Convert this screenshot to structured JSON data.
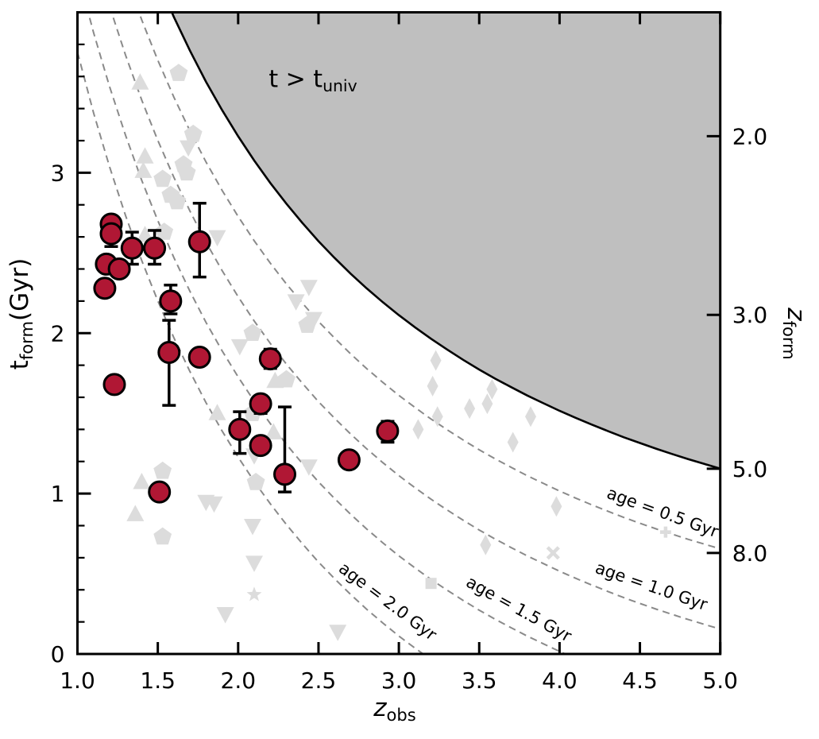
{
  "labels": {
    "ylabel": {
      "pre": "t",
      "sub": "form",
      "post": "(Gyr)"
    },
    "xlabel": {
      "pre": "z",
      "sub": "obs",
      "post": ""
    },
    "right_label": {
      "pre": "z",
      "sub": "form",
      "post": ""
    },
    "exclusion_label": {
      "pre": "t > t",
      "sub": "univ",
      "post": ""
    }
  },
  "colors": {
    "point_fill": "#b01734",
    "point_edge": "#000000",
    "background_marker": "#dcdcdc",
    "exclusion_fill": "#bfbfbf",
    "boundary_line": "#000000",
    "age_curve_line": "#8a8a8a",
    "text": "#000000"
  },
  "chart_data": {
    "type": "scatter",
    "title": "",
    "grid": false,
    "legend": "none",
    "x_axis": {
      "min": 1.0,
      "max": 5.0,
      "ticks": [
        1.0,
        1.5,
        2.0,
        2.5,
        3.0,
        3.5,
        4.0,
        4.5,
        5.0
      ],
      "tick_labels": [
        "1.0",
        "1.5",
        "2.0",
        "2.5",
        "3.0",
        "3.5",
        "4.0",
        "4.5",
        "5.0"
      ]
    },
    "y_axis": {
      "min": 0.0,
      "max": 4.0,
      "ticks": [
        0,
        1,
        2,
        3
      ],
      "tick_labels": [
        "0",
        "1",
        "2",
        "3"
      ],
      "minor_step": 0.2
    },
    "right_axis": {
      "ticks": [
        {
          "label": "2.0",
          "t": 3.228
        },
        {
          "label": "3.0",
          "t": 2.114
        },
        {
          "label": "5.0",
          "t": 1.155
        },
        {
          "label": "8.0",
          "t": 0.63
        }
      ]
    },
    "t_univ_curve": [
      [
        1.0,
        5.752
      ],
      [
        1.1,
        5.375
      ],
      [
        1.2,
        5.036
      ],
      [
        1.3,
        4.731
      ],
      [
        1.4,
        4.453
      ],
      [
        1.5,
        4.201
      ],
      [
        1.6,
        3.971
      ],
      [
        1.7,
        3.761
      ],
      [
        1.8,
        3.567
      ],
      [
        1.9,
        3.39
      ],
      [
        2.0,
        3.227
      ],
      [
        2.1,
        3.076
      ],
      [
        2.2,
        2.936
      ],
      [
        2.3,
        2.807
      ],
      [
        2.4,
        2.687
      ],
      [
        2.5,
        2.573
      ],
      [
        2.6,
        2.469
      ],
      [
        2.7,
        2.371
      ],
      [
        2.8,
        2.279
      ],
      [
        2.9,
        2.193
      ],
      [
        3.0,
        2.112
      ],
      [
        3.1,
        2.037
      ],
      [
        3.2,
        1.965
      ],
      [
        3.3,
        1.898
      ],
      [
        3.4,
        1.834
      ],
      [
        3.5,
        1.773
      ],
      [
        3.6,
        1.716
      ],
      [
        3.7,
        1.663
      ],
      [
        3.8,
        1.611
      ],
      [
        3.9,
        1.563
      ],
      [
        4.0,
        1.516
      ],
      [
        4.1,
        1.472
      ],
      [
        4.2,
        1.43
      ],
      [
        4.3,
        1.39
      ],
      [
        4.4,
        1.351
      ],
      [
        4.5,
        1.315
      ],
      [
        4.6,
        1.28
      ],
      [
        4.7,
        1.247
      ],
      [
        4.8,
        1.215
      ],
      [
        4.9,
        1.185
      ],
      [
        5.0,
        1.155
      ]
    ],
    "age_curves": [
      {
        "age": 0.5,
        "label": "age = 0.5 Gyr",
        "label_z": 4.63,
        "label_t": 0.85,
        "label_rot": 20
      },
      {
        "age": 1.0,
        "label": "age = 1.0 Gyr",
        "label_z": 4.56,
        "label_t": 0.39,
        "label_rot": 19
      },
      {
        "age": 1.5,
        "label": "age = 1.5 Gyr",
        "label_z": 3.73,
        "label_t": 0.25,
        "label_rot": 29
      },
      {
        "age": 2.0,
        "label": "age = 2.0 Gyr",
        "label_z": 2.91,
        "label_t": 0.3,
        "label_rot": 37
      }
    ],
    "series": [
      {
        "name": "primary-sample",
        "marker": "circle",
        "columns": [
          "z_obs",
          "t_form",
          "err_plus",
          "err_minus"
        ],
        "points": [
          [
            1.21,
            2.68,
            0.05,
            0.05
          ],
          [
            1.21,
            2.62,
            0.08,
            0.08
          ],
          [
            1.34,
            2.53,
            0.1,
            0.1
          ],
          [
            1.48,
            2.53,
            0.11,
            0.1
          ],
          [
            1.76,
            2.57,
            0.24,
            0.22
          ],
          [
            1.18,
            2.43,
            0,
            0
          ],
          [
            1.26,
            2.4,
            0,
            0
          ],
          [
            1.17,
            2.28,
            0,
            0
          ],
          [
            1.58,
            2.2,
            0.1,
            0.08
          ],
          [
            1.57,
            1.88,
            0.2,
            0.33
          ],
          [
            1.76,
            1.85,
            0,
            0
          ],
          [
            2.2,
            1.84,
            0.06,
            0.06
          ],
          [
            1.23,
            1.68,
            0,
            0
          ],
          [
            2.14,
            1.56,
            0.05,
            0.06
          ],
          [
            2.01,
            1.4,
            0.11,
            0.15
          ],
          [
            2.14,
            1.3,
            0,
            0
          ],
          [
            2.29,
            1.12,
            0.42,
            0.11
          ],
          [
            2.93,
            1.39,
            0.06,
            0.07
          ],
          [
            2.69,
            1.21,
            0,
            0
          ],
          [
            1.51,
            1.01,
            0,
            0
          ]
        ]
      },
      {
        "name": "literature-triangle-up",
        "marker": "triangle-up",
        "points": [
          [
            1.39,
            3.56
          ],
          [
            1.42,
            3.1
          ],
          [
            1.41,
            3.01
          ],
          [
            1.42,
            2.61
          ],
          [
            2.23,
            1.7
          ],
          [
            1.87,
            1.5
          ],
          [
            2.22,
            1.38
          ],
          [
            1.4,
            1.07
          ],
          [
            1.36,
            0.87
          ]
        ]
      },
      {
        "name": "literature-triangle-down",
        "marker": "triangle-down",
        "points": [
          [
            1.69,
            3.16
          ],
          [
            1.87,
            2.6
          ],
          [
            2.44,
            2.29
          ],
          [
            2.36,
            2.2
          ],
          [
            2.47,
            2.09
          ],
          [
            2.01,
            1.92
          ],
          [
            2.1,
            1.24
          ],
          [
            2.44,
            1.17
          ],
          [
            1.8,
            0.95
          ],
          [
            1.85,
            0.94
          ],
          [
            2.09,
            0.8
          ],
          [
            2.1,
            0.57
          ],
          [
            1.92,
            0.25
          ],
          [
            2.62,
            0.14
          ]
        ]
      },
      {
        "name": "literature-pentagon",
        "marker": "pentagon",
        "points": [
          [
            1.63,
            3.62
          ],
          [
            1.72,
            3.24
          ],
          [
            1.66,
            3.05
          ],
          [
            1.68,
            3.0
          ],
          [
            1.53,
            2.96
          ],
          [
            1.58,
            2.86
          ],
          [
            1.62,
            2.82
          ],
          [
            1.54,
            2.63
          ],
          [
            2.43,
            2.05
          ],
          [
            2.09,
            2.0
          ],
          [
            2.3,
            1.71
          ],
          [
            2.09,
            1.5
          ],
          [
            2.11,
            1.07
          ],
          [
            1.53,
            1.14
          ],
          [
            1.53,
            0.73
          ]
        ]
      },
      {
        "name": "literature-diamond",
        "marker": "thin-diamond",
        "points": [
          [
            3.23,
            1.83
          ],
          [
            3.21,
            1.67
          ],
          [
            3.58,
            1.65
          ],
          [
            3.55,
            1.56
          ],
          [
            3.44,
            1.53
          ],
          [
            3.24,
            1.48
          ],
          [
            3.12,
            1.4
          ],
          [
            3.82,
            1.48
          ],
          [
            3.71,
            1.32
          ],
          [
            3.98,
            0.92
          ],
          [
            3.54,
            0.68
          ]
        ]
      },
      {
        "name": "literature-square",
        "marker": "square",
        "points": [
          [
            3.2,
            0.44
          ]
        ]
      },
      {
        "name": "literature-star",
        "marker": "star",
        "points": [
          [
            2.1,
            0.37
          ]
        ]
      },
      {
        "name": "literature-x",
        "marker": "x",
        "points": [
          [
            3.96,
            0.63
          ]
        ]
      },
      {
        "name": "literature-plus",
        "marker": "plus",
        "points": [
          [
            4.66,
            0.76
          ]
        ]
      }
    ]
  }
}
